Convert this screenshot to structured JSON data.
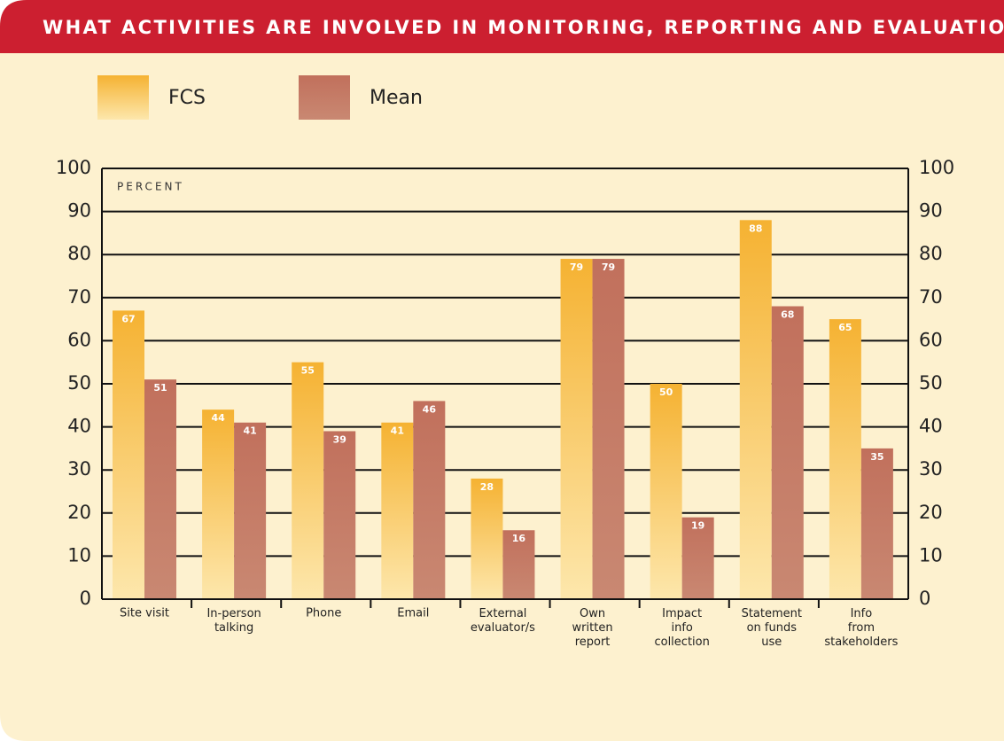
{
  "chart_data": {
    "type": "bar",
    "title": "WHAT ACTIVITIES ARE INVOLVED IN MONITORING, REPORTING AND EVALUATION?",
    "y_label": "PERCENT",
    "categories": [
      "Site visit",
      "In-person\ntalking",
      "Phone",
      "Email",
      "External\nevaluator/s",
      "Own\nwritten\nreport",
      "Impact\ninfo\ncollection",
      "Statement\non funds\nuse",
      "Info\nfrom\nstakeholders"
    ],
    "series": [
      {
        "name": "FCS",
        "color": "#f5b232",
        "values": [
          67,
          44,
          55,
          41,
          28,
          79,
          50,
          88,
          65
        ]
      },
      {
        "name": "Mean",
        "color": "#c1705c",
        "values": [
          51,
          41,
          39,
          46,
          16,
          79,
          19,
          68,
          35
        ]
      }
    ],
    "ylim": [
      0,
      100
    ],
    "yticks": [
      0,
      10,
      20,
      30,
      40,
      50,
      60,
      70,
      80,
      90,
      100
    ],
    "grid": true,
    "right_axis_labels": true
  }
}
